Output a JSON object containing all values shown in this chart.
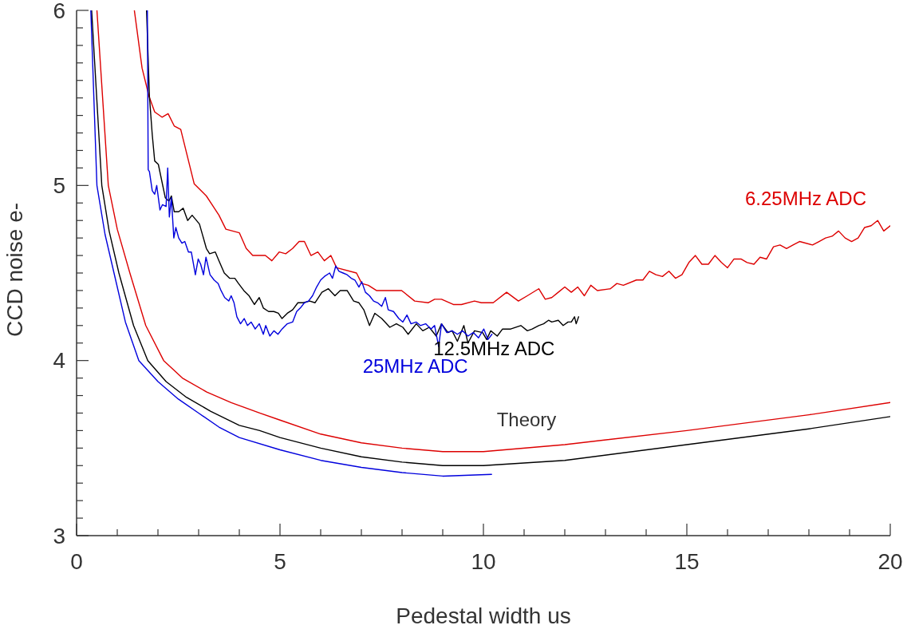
{
  "chart_data": {
    "type": "line",
    "xlabel": "Pedestal width us",
    "ylabel": "CCD noise e-",
    "xlim": [
      0,
      20
    ],
    "ylim": [
      3,
      6
    ],
    "xticks": [
      0,
      {
        "value": 1,
        "label": null
      },
      {
        "value": 2,
        "label": null
      },
      {
        "value": 3,
        "label": null
      },
      {
        "value": 4,
        "label": null
      },
      5,
      {
        "value": 6,
        "label": null
      },
      {
        "value": 7,
        "label": null
      },
      {
        "value": 8,
        "label": null
      },
      {
        "value": 9,
        "label": null
      },
      10,
      {
        "value": 11,
        "label": null
      },
      {
        "value": 12,
        "label": null
      },
      {
        "value": 13,
        "label": null
      },
      {
        "value": 14,
        "label": null
      },
      15,
      {
        "value": 16,
        "label": null
      },
      {
        "value": 17,
        "label": null
      },
      {
        "value": 18,
        "label": null
      },
      {
        "value": 19,
        "label": null
      },
      20
    ],
    "yticks": [
      3,
      {
        "value": 3.1,
        "label": null
      },
      {
        "value": 3.2,
        "label": null
      },
      {
        "value": 3.3,
        "label": null
      },
      {
        "value": 3.4,
        "label": null
      },
      {
        "value": 3.5,
        "label": null
      },
      {
        "value": 3.6,
        "label": null
      },
      {
        "value": 3.7,
        "label": null
      },
      {
        "value": 3.8,
        "label": null
      },
      {
        "value": 3.9,
        "label": null
      },
      4,
      {
        "value": 4.1,
        "label": null
      },
      {
        "value": 4.2,
        "label": null
      },
      {
        "value": 4.3,
        "label": null
      },
      {
        "value": 4.4,
        "label": null
      },
      {
        "value": 4.5,
        "label": null
      },
      {
        "value": 4.6,
        "label": null
      },
      {
        "value": 4.7,
        "label": null
      },
      {
        "value": 4.8,
        "label": null
      },
      {
        "value": 4.9,
        "label": null
      },
      5,
      {
        "value": 5.1,
        "label": null
      },
      {
        "value": 5.2,
        "label": null
      },
      {
        "value": 5.3,
        "label": null
      },
      {
        "value": 5.4,
        "label": null
      },
      {
        "value": 5.5,
        "label": null
      },
      {
        "value": 5.6,
        "label": null
      },
      {
        "value": 5.7,
        "label": null
      },
      {
        "value": 5.8,
        "label": null
      },
      {
        "value": 5.9,
        "label": null
      },
      6
    ],
    "grid": false,
    "legend": false,
    "marker": "none",
    "line_style": "solid",
    "annotations": [
      "Theory"
    ],
    "series": [
      {
        "color": "#dd0000",
        "x": [
          0.5,
          0.78,
          1.0,
          1.31,
          1.7,
          2.14,
          2.6,
          3.2,
          3.8,
          4.5,
          5,
          6,
          7,
          8,
          9,
          10,
          12,
          15,
          18,
          20
        ],
        "values": [
          6.0,
          5.0,
          4.75,
          4.5,
          4.2,
          4.0,
          3.9,
          3.82,
          3.76,
          3.7,
          3.66,
          3.58,
          3.53,
          3.5,
          3.48,
          3.48,
          3.52,
          3.6,
          3.69,
          3.76
        ]
      },
      {
        "color": "#000000",
        "x": [
          0.37,
          0.62,
          0.8,
          1.04,
          1.4,
          1.75,
          2.2,
          2.7,
          3.3,
          4,
          4.5,
          5,
          6,
          7,
          8,
          9,
          10,
          12,
          15,
          18,
          20
        ],
        "values": [
          6.0,
          5.0,
          4.74,
          4.5,
          4.2,
          4.0,
          3.88,
          3.79,
          3.71,
          3.63,
          3.6,
          3.56,
          3.5,
          3.45,
          3.42,
          3.4,
          3.4,
          3.43,
          3.52,
          3.61,
          3.68
        ]
      },
      {
        "color": "#0000dd",
        "x": [
          0.35,
          0.5,
          0.7,
          0.92,
          1.2,
          1.53,
          2,
          2.5,
          3,
          3.5,
          4,
          5,
          6,
          7,
          8,
          9,
          10.2
        ],
        "values": [
          6.0,
          5.0,
          4.72,
          4.5,
          4.22,
          4.0,
          3.88,
          3.78,
          3.7,
          3.62,
          3.56,
          3.49,
          3.43,
          3.39,
          3.36,
          3.34,
          3.35
        ]
      },
      {
        "name": "6.25MHz ADC",
        "color": "#dd0000",
        "x": [
          1.42,
          1.61,
          1.78,
          1.92,
          2.1,
          2.25,
          2.4,
          2.56,
          2.89,
          3.19,
          3.5,
          3.67,
          4.0,
          4.17,
          4.33,
          4.64,
          4.8,
          4.98,
          5.14,
          5.31,
          5.47,
          5.6,
          5.76,
          5.93,
          6.09,
          6.25,
          6.39,
          6.88,
          7.01,
          7.17,
          7.37,
          7.99,
          8.31,
          8.64,
          8.8,
          8.97,
          9.26,
          9.46,
          9.78,
          9.95,
          10.24,
          10.57,
          10.86,
          11.08,
          11.36,
          11.52,
          11.68,
          11.84,
          12.0,
          12.16,
          12.32,
          12.48,
          12.64,
          12.8,
          13.12,
          13.28,
          13.44,
          13.76,
          13.92,
          14.08,
          14.24,
          14.4,
          14.56,
          14.72,
          14.88,
          15.05,
          15.21,
          15.37,
          15.53,
          15.69,
          15.85,
          16.0,
          16.16,
          16.33,
          16.48,
          16.65,
          16.8,
          16.96,
          17.13,
          17.29,
          17.45,
          17.61,
          17.77,
          18.09,
          18.25,
          18.41,
          18.57,
          18.73,
          18.89,
          19.05,
          19.21,
          19.37,
          19.53,
          19.69,
          19.84,
          20.0
        ],
        "values": [
          6.0,
          5.67,
          5.51,
          5.42,
          5.39,
          5.41,
          5.34,
          5.32,
          5.01,
          4.94,
          4.83,
          4.75,
          4.73,
          4.64,
          4.6,
          4.6,
          4.57,
          4.62,
          4.61,
          4.64,
          4.68,
          4.68,
          4.6,
          4.62,
          4.57,
          4.6,
          4.53,
          4.5,
          4.44,
          4.43,
          4.4,
          4.4,
          4.34,
          4.33,
          4.35,
          4.35,
          4.32,
          4.32,
          4.34,
          4.33,
          4.33,
          4.39,
          4.34,
          4.37,
          4.41,
          4.35,
          4.36,
          4.39,
          4.42,
          4.39,
          4.42,
          4.37,
          4.43,
          4.4,
          4.41,
          4.44,
          4.43,
          4.46,
          4.46,
          4.51,
          4.49,
          4.48,
          4.51,
          4.47,
          4.49,
          4.56,
          4.6,
          4.55,
          4.55,
          4.6,
          4.56,
          4.53,
          4.58,
          4.58,
          4.56,
          4.55,
          4.59,
          4.58,
          4.65,
          4.66,
          4.64,
          4.66,
          4.68,
          4.66,
          4.68,
          4.7,
          4.71,
          4.74,
          4.7,
          4.68,
          4.7,
          4.76,
          4.77,
          4.8,
          4.74,
          4.77
        ]
      },
      {
        "name": "12.5MHz ADC",
        "color": "#000000",
        "x": [
          1.72,
          1.79,
          1.86,
          1.92,
          2.01,
          2.18,
          2.27,
          2.33,
          2.4,
          2.51,
          2.62,
          2.73,
          2.84,
          3.02,
          3.19,
          3.27,
          3.41,
          3.5,
          3.63,
          3.76,
          3.89,
          3.98,
          4.11,
          4.24,
          4.37,
          4.49,
          4.59,
          4.72,
          4.85,
          4.96,
          5.05,
          5.18,
          5.31,
          5.44,
          5.57,
          5.73,
          5.86,
          6.03,
          6.19,
          6.35,
          6.48,
          6.65,
          6.81,
          6.94,
          7.06,
          7.2,
          7.33,
          7.5,
          7.7,
          7.86,
          8.02,
          8.15,
          8.35,
          8.51,
          8.67,
          8.84,
          8.97,
          9.13,
          9.23,
          9.36,
          9.52,
          9.62,
          9.78,
          9.98,
          10.08,
          10.18,
          10.34,
          10.47,
          10.67,
          10.92,
          11.08,
          11.2,
          11.36,
          11.48,
          11.6,
          11.68,
          11.84,
          11.96,
          12.08,
          12.16,
          12.24,
          12.28,
          12.34
        ],
        "values": [
          6.0,
          5.51,
          5.29,
          5.14,
          5.12,
          4.93,
          4.91,
          4.94,
          4.85,
          4.85,
          4.87,
          4.8,
          4.83,
          4.78,
          4.64,
          4.61,
          4.62,
          4.57,
          4.5,
          4.47,
          4.47,
          4.44,
          4.4,
          4.37,
          4.32,
          4.36,
          4.3,
          4.28,
          4.28,
          4.27,
          4.24,
          4.27,
          4.29,
          4.33,
          4.33,
          4.34,
          4.33,
          4.39,
          4.41,
          4.37,
          4.4,
          4.4,
          4.34,
          4.33,
          4.29,
          4.2,
          4.27,
          4.24,
          4.19,
          4.21,
          4.19,
          4.15,
          4.21,
          4.17,
          4.19,
          4.14,
          4.21,
          4.16,
          4.17,
          4.11,
          4.2,
          4.1,
          4.17,
          4.16,
          4.12,
          4.17,
          4.14,
          4.18,
          4.18,
          4.2,
          4.17,
          4.18,
          4.2,
          4.21,
          4.23,
          4.22,
          4.23,
          4.2,
          4.22,
          4.22,
          4.25,
          4.21,
          4.25
        ]
      },
      {
        "name": "25MHz ADC",
        "color": "#0000dd",
        "x": [
          1.74,
          1.76,
          1.79,
          1.86,
          1.92,
          1.97,
          2.05,
          2.11,
          2.2,
          2.24,
          2.28,
          2.33,
          2.39,
          2.44,
          2.51,
          2.59,
          2.66,
          2.75,
          2.82,
          2.92,
          2.99,
          3.05,
          3.12,
          3.18,
          3.28,
          3.38,
          3.48,
          3.55,
          3.64,
          3.74,
          3.8,
          3.87,
          3.94,
          4.03,
          4.12,
          4.2,
          4.29,
          4.39,
          4.49,
          4.59,
          4.65,
          4.75,
          4.85,
          4.95,
          5.05,
          5.18,
          5.31,
          5.41,
          5.5,
          5.6,
          5.7,
          5.8,
          5.9,
          6.0,
          6.09,
          6.22,
          6.29,
          6.37,
          6.45,
          6.55,
          6.65,
          6.75,
          6.84,
          6.94,
          7.01,
          7.1,
          7.2,
          7.3,
          7.4,
          7.5,
          7.59,
          7.66,
          7.79,
          7.92,
          8.02,
          8.12,
          8.22,
          8.35,
          8.45,
          8.58,
          8.71,
          8.8,
          8.9,
          8.97,
          9.1,
          9.23,
          9.36,
          9.49,
          9.62,
          9.75,
          9.88,
          10.01,
          10.11,
          10.21
        ],
        "values": [
          6.0,
          5.09,
          5.08,
          4.97,
          4.95,
          5.0,
          4.86,
          4.89,
          4.88,
          5.1,
          4.82,
          4.93,
          4.7,
          4.76,
          4.7,
          4.67,
          4.68,
          4.62,
          4.62,
          4.49,
          4.58,
          4.55,
          4.49,
          4.59,
          4.49,
          4.46,
          4.44,
          4.4,
          4.36,
          4.34,
          4.37,
          4.33,
          4.25,
          4.21,
          4.24,
          4.2,
          4.22,
          4.18,
          4.21,
          4.15,
          4.2,
          4.14,
          4.17,
          4.15,
          4.18,
          4.21,
          4.22,
          4.28,
          4.3,
          4.33,
          4.34,
          4.37,
          4.42,
          4.46,
          4.48,
          4.5,
          4.47,
          4.54,
          4.51,
          4.5,
          4.49,
          4.47,
          4.46,
          4.42,
          4.45,
          4.39,
          4.37,
          4.34,
          4.33,
          4.31,
          4.36,
          4.29,
          4.28,
          4.24,
          4.22,
          4.26,
          4.21,
          4.22,
          4.2,
          4.21,
          4.18,
          4.2,
          4.08,
          4.21,
          4.16,
          4.17,
          4.15,
          4.17,
          4.14,
          4.16,
          4.13,
          4.18,
          4.12,
          4.15
        ]
      }
    ]
  }
}
